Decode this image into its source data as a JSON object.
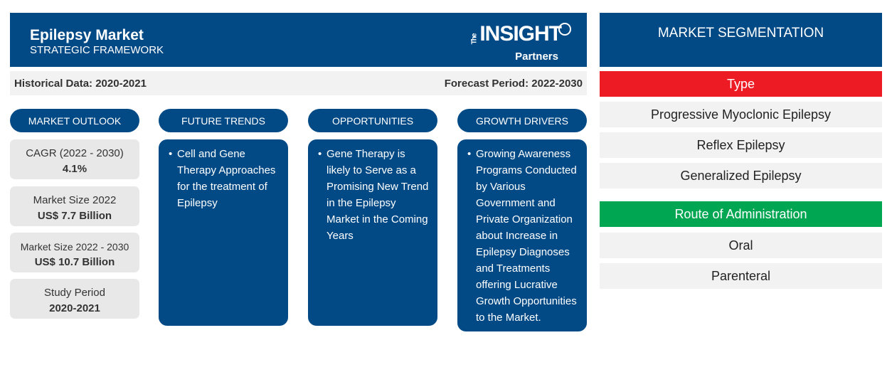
{
  "header": {
    "title": "Epilepsy Market",
    "subtitle": "STRATEGIC FRAMEWORK",
    "logo": {
      "the": "The",
      "insight": "INSIGHT",
      "partners": "Partners"
    }
  },
  "period_bar": {
    "historical": "Historical Data: 2020-2021",
    "forecast": "Forecast Period: 2022-2030"
  },
  "columns": [
    {
      "label": "MARKET OUTLOOK"
    },
    {
      "label": "FUTURE TRENDS",
      "text": "Cell and Gene Therapy Approaches for the treatment of Epilepsy"
    },
    {
      "label": "OPPORTUNITIES",
      "text": "Gene Therapy is likely to Serve as a Promising New Trend in the Epilepsy Market in the Coming Years"
    },
    {
      "label": "GROWTH DRIVERS",
      "text": "Growing Awareness Programs Conducted by Various Government and Private Organization about Increase in Epilepsy Diagnoses and Treatments offering Lucrative Growth Opportunities to the Market."
    }
  ],
  "outlook": [
    {
      "label": "CAGR (2022 - 2030)",
      "value": "4.1%"
    },
    {
      "label": "Market Size 2022",
      "value": "US$ 7.7 Billion"
    },
    {
      "label": "Market Size 2022 - 2030",
      "value": "US$ 10.7 Billion"
    },
    {
      "label": "Study Period",
      "value": "2020-2021"
    }
  ],
  "segmentation": {
    "title": "MARKET SEGMENTATION",
    "type": {
      "label": "Type",
      "color": "#ed1c24",
      "items": [
        "Progressive Myoclonic Epilepsy",
        "Reflex Epilepsy",
        "Generalized Epilepsy"
      ]
    },
    "route": {
      "label": "Route of Administration",
      "color": "#00a651",
      "items": [
        "Oral",
        "Parenteral"
      ]
    }
  }
}
